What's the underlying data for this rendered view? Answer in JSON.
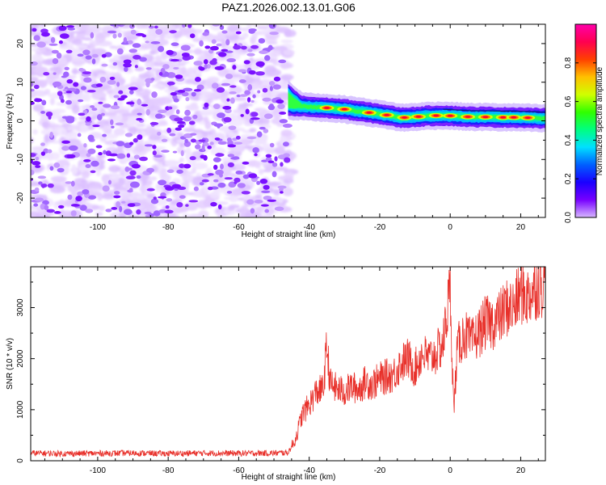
{
  "title": "PAZ1.2026.002.13.01.G06",
  "chart_data": [
    {
      "type": "heatmap",
      "title": "PAZ1.2026.002.13.01.G06",
      "xlabel": "Height of straight line (km)",
      "ylabel": "Frequency (Hz)",
      "xlim": [
        -119,
        27
      ],
      "ylim": [
        -25,
        25
      ],
      "xticks": [
        -100,
        -80,
        -60,
        -40,
        -20,
        0,
        20
      ],
      "yticks": [
        -20,
        -10,
        0,
        10,
        20
      ],
      "noise_region_x": [
        -119,
        -46
      ],
      "signal_start_x": -46,
      "signal_center_freq": [
        {
          "x": -46,
          "y": 5.5
        },
        {
          "x": -44,
          "y": 4.5
        },
        {
          "x": -42,
          "y": 3.8
        },
        {
          "x": -38,
          "y": 3.5
        },
        {
          "x": -34,
          "y": 3.3
        },
        {
          "x": -30,
          "y": 3.0
        },
        {
          "x": -26,
          "y": 2.5
        },
        {
          "x": -22,
          "y": 2.0
        },
        {
          "x": -18,
          "y": 1.5
        },
        {
          "x": -14,
          "y": 0.8
        },
        {
          "x": -10,
          "y": 1.0
        },
        {
          "x": -6,
          "y": 1.3
        },
        {
          "x": -2,
          "y": 1.4
        },
        {
          "x": 2,
          "y": 1.2
        },
        {
          "x": 6,
          "y": 1.0
        },
        {
          "x": 10,
          "y": 1.0
        },
        {
          "x": 14,
          "y": 0.9
        },
        {
          "x": 18,
          "y": 0.9
        },
        {
          "x": 22,
          "y": 0.8
        },
        {
          "x": 27,
          "y": 0.6
        }
      ],
      "peak_amplitude_x": [
        -35,
        -30,
        -23,
        -18,
        -13,
        -9,
        -4,
        0,
        5,
        10,
        15,
        18,
        22
      ],
      "colorbar": {
        "label": "Normalized spectral amplitude",
        "range": [
          0,
          1
        ],
        "ticks": [
          "0.0",
          "0.2",
          "0.4",
          "0.6",
          "0.8"
        ],
        "colormap": [
          "#d8b8ff",
          "#7700ff",
          "#1a00ff",
          "#0060ff",
          "#00e0ff",
          "#00ff80",
          "#30ff00",
          "#d0ff00",
          "#ffc000",
          "#ff4000",
          "#ff0050",
          "#ff00aa"
        ]
      }
    },
    {
      "type": "line",
      "xlabel": "Height of straight line (km)",
      "ylabel": "SNR (10 * v/v)",
      "xlim": [
        -119,
        27
      ],
      "ylim": [
        0,
        3800
      ],
      "xticks": [
        -100,
        -80,
        -60,
        -40,
        -20,
        0,
        20
      ],
      "yticks": [
        0,
        1000,
        2000,
        3000
      ],
      "color": "#e8302a",
      "series": [
        {
          "name": "SNR",
          "x": [
            -119,
            -110,
            -100,
            -90,
            -80,
            -70,
            -60,
            -50,
            -46,
            -44,
            -42,
            -40,
            -38,
            -36,
            -35,
            -34,
            -32,
            -30,
            -28,
            -26,
            -24,
            -22,
            -20,
            -18,
            -16,
            -14,
            -12,
            -10,
            -8,
            -6,
            -4,
            -2,
            0,
            1,
            2,
            4,
            6,
            8,
            10,
            12,
            14,
            16,
            18,
            20,
            22,
            24,
            27
          ],
          "values": [
            150,
            140,
            145,
            150,
            140,
            150,
            145,
            150,
            160,
            400,
            900,
            1100,
            1350,
            1400,
            2250,
            1500,
            1400,
            1350,
            1450,
            1400,
            1550,
            1500,
            1600,
            1650,
            1700,
            1900,
            2000,
            1800,
            2100,
            2000,
            2100,
            2300,
            3400,
            950,
            2200,
            2500,
            2300,
            2500,
            2700,
            2700,
            2800,
            3000,
            3000,
            3300,
            3200,
            3400,
            3500
          ]
        }
      ]
    }
  ]
}
